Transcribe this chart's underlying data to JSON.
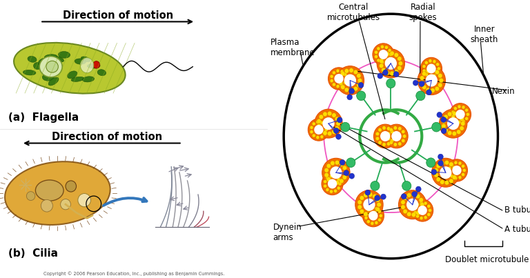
{
  "bg_left": "#ffffff",
  "bg_right": "#b8dff0",
  "title_flagella": "Direction of motion",
  "title_cilia": "Direction of motion",
  "label_a": "(a)  Flagella",
  "label_b": "(b)  Cilia",
  "copyright": "Copyright © 2006 Pearson Education, Inc., publishing as Benjamin Cummings.",
  "labels": {
    "plasma_membrane": "Plasma\nmembrane",
    "central_microtubules": "Central\nmicrotubules",
    "radial_spokes": "Radial\nspokes",
    "inner_sheath": "Inner\nsheath",
    "nexin": "Nexin",
    "dynein_arms": "Dynein\narms",
    "b_tubule": "B tubule",
    "a_tubule": "A tubule",
    "doublet": "Doublet microtubule"
  },
  "n_doublets": 9,
  "orange_outer": "#e85000",
  "orange_fill": "#f07000",
  "yellow_dot": "#ffdd00",
  "red_dot": "#dd2200",
  "green_spoke": "#22aa55",
  "green_sheath": "#33aa44",
  "pink_nexin": "#ee44bb",
  "blue_dynein": "#2233cc"
}
